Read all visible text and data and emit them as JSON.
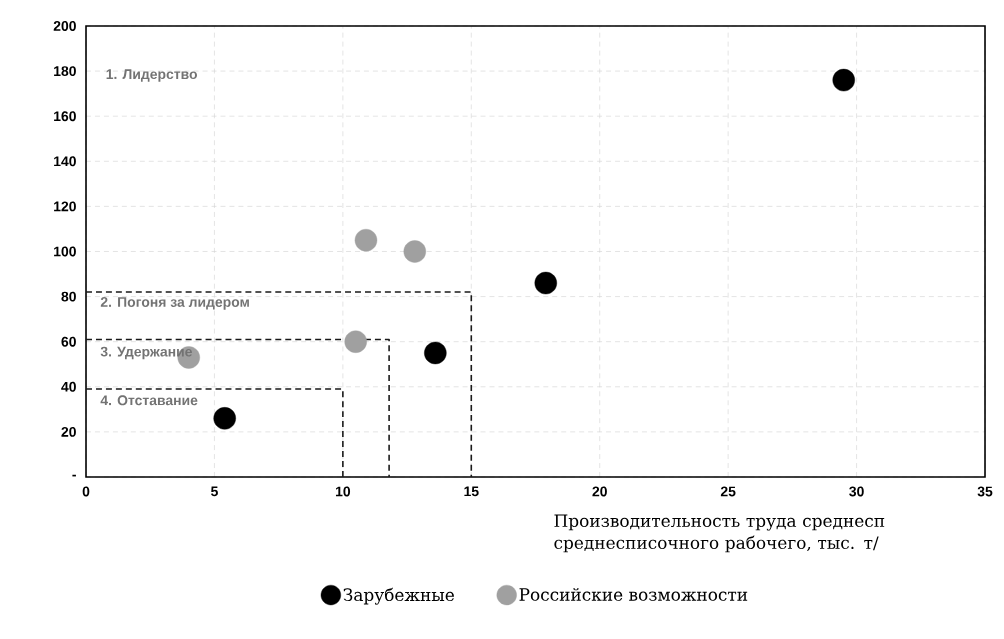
{
  "chart_data": {
    "type": "scatter",
    "xlabel": "Производительность труда среднесп среднесписочного рабочего, тыс. т/",
    "xlim": [
      0,
      35
    ],
    "xticks": [
      0,
      5,
      10,
      15,
      20,
      25,
      30,
      35
    ],
    "ylim": [
      0,
      200
    ],
    "yticks": [
      {
        "value": 0,
        "label": "-"
      },
      20,
      40,
      60,
      80,
      100,
      120,
      140,
      160,
      180,
      200
    ],
    "grid": true,
    "legend": "bottom",
    "series": [
      {
        "name": "Зарубежные",
        "color": "#000000",
        "marker": "circle",
        "x": [
          29.5,
          17.9,
          13.6,
          5.4
        ],
        "values": [
          176,
          86,
          55,
          26
        ]
      },
      {
        "name": "Российские возможности",
        "color": "#a0a0a0",
        "marker": "circle",
        "x": [
          10.9,
          12.8,
          10.5,
          4.0
        ],
        "values": [
          105,
          100,
          60,
          53
        ]
      },
      {
        "type": "line",
        "color": "#1a1a1a",
        "line_style": "dashed",
        "marker": "none",
        "x": [
          0,
          15,
          15
        ],
        "values": [
          82,
          82,
          0
        ]
      },
      {
        "type": "line",
        "color": "#1a1a1a",
        "line_style": "dashed",
        "marker": "none",
        "x": [
          0,
          11.8,
          11.8
        ],
        "values": [
          61,
          61,
          0
        ]
      },
      {
        "type": "line",
        "color": "#1a1a1a",
        "line_style": "dashed",
        "marker": "none",
        "x": [
          0,
          10,
          10
        ],
        "values": [
          39,
          39,
          0
        ]
      }
    ],
    "annotations": [
      "1. Лидерство",
      "2. Погоня за лидером",
      "3. Удержание",
      "4. Отставание"
    ]
  }
}
